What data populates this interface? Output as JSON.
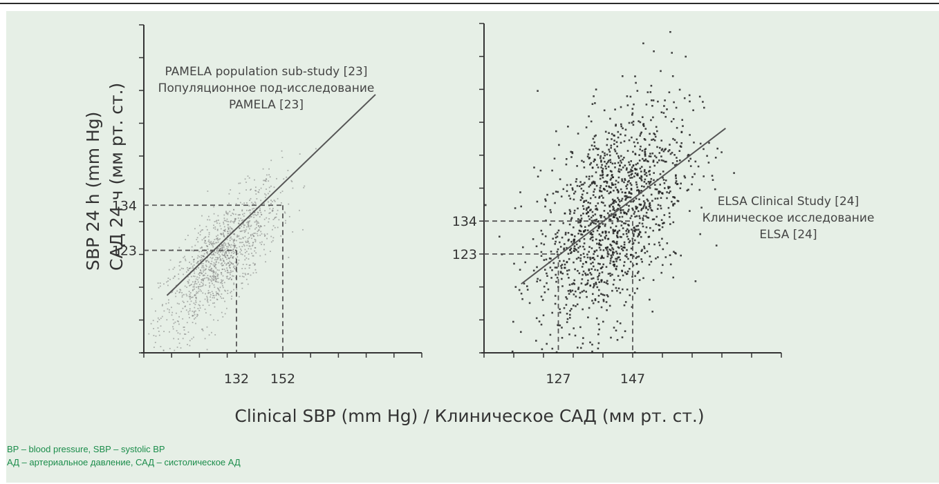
{
  "y_axis_title": [
    "SBP 24 h (mm Hg)",
    "САД 24 ч (мм рт. ст.)"
  ],
  "x_axis_title": "Clinical SBP (mm Hg)  /  Клиническое САД (мм рт. ст.)",
  "footnotes": [
    "BP – blood pressure, SBP – systolic BP",
    "АД – артериальное давление, САД – систолическое АД"
  ],
  "colors": {
    "panel_background": "#e6efe6",
    "ink": "#333333",
    "footnote": "#1a8c4a"
  },
  "chart_data": [
    {
      "type": "scatter",
      "annotation": [
        "PAMELA population sub-study [23]",
        "Популяционное  под-исследование",
        "PAMELA [23]"
      ],
      "xlim": [
        92,
        212
      ],
      "ylim": [
        98,
        178
      ],
      "x_ticks_labeled": [
        "132",
        "152"
      ],
      "y_ticks_labeled": [
        "134",
        "123"
      ],
      "reference_points": [
        {
          "x": 132,
          "y": 123
        },
        {
          "x": 152,
          "y": 134
        }
      ],
      "regression_line": {
        "x": [
          102,
          192
        ],
        "y": [
          112,
          161
        ]
      },
      "cluster": {
        "center_x": 125,
        "center_y": 121,
        "spread_x": 13,
        "spread_y": 6,
        "slope": 0.54,
        "n_points": 1200
      },
      "grid": false,
      "point_color": "#777777"
    },
    {
      "type": "scatter",
      "annotation": [
        "ELSA Clinical Study [24]",
        "Клиническое исследование",
        "ELSA [24]"
      ],
      "xlim": [
        107,
        187
      ],
      "ylim": [
        90,
        200
      ],
      "x_ticks_labeled": [
        "127",
        "147"
      ],
      "y_ticks_labeled": [
        "134",
        "123"
      ],
      "reference_points": [
        {
          "x": 127,
          "y": 123
        },
        {
          "x": 147,
          "y": 134
        }
      ],
      "regression_line": {
        "x": [
          117,
          172
        ],
        "y": [
          113,
          165
        ]
      },
      "cluster": {
        "center_x": 141,
        "center_y": 136,
        "spread_x": 10,
        "spread_y": 17,
        "slope": 0.95,
        "n_points": 1400
      },
      "grid": false,
      "point_color": "#222222"
    }
  ]
}
